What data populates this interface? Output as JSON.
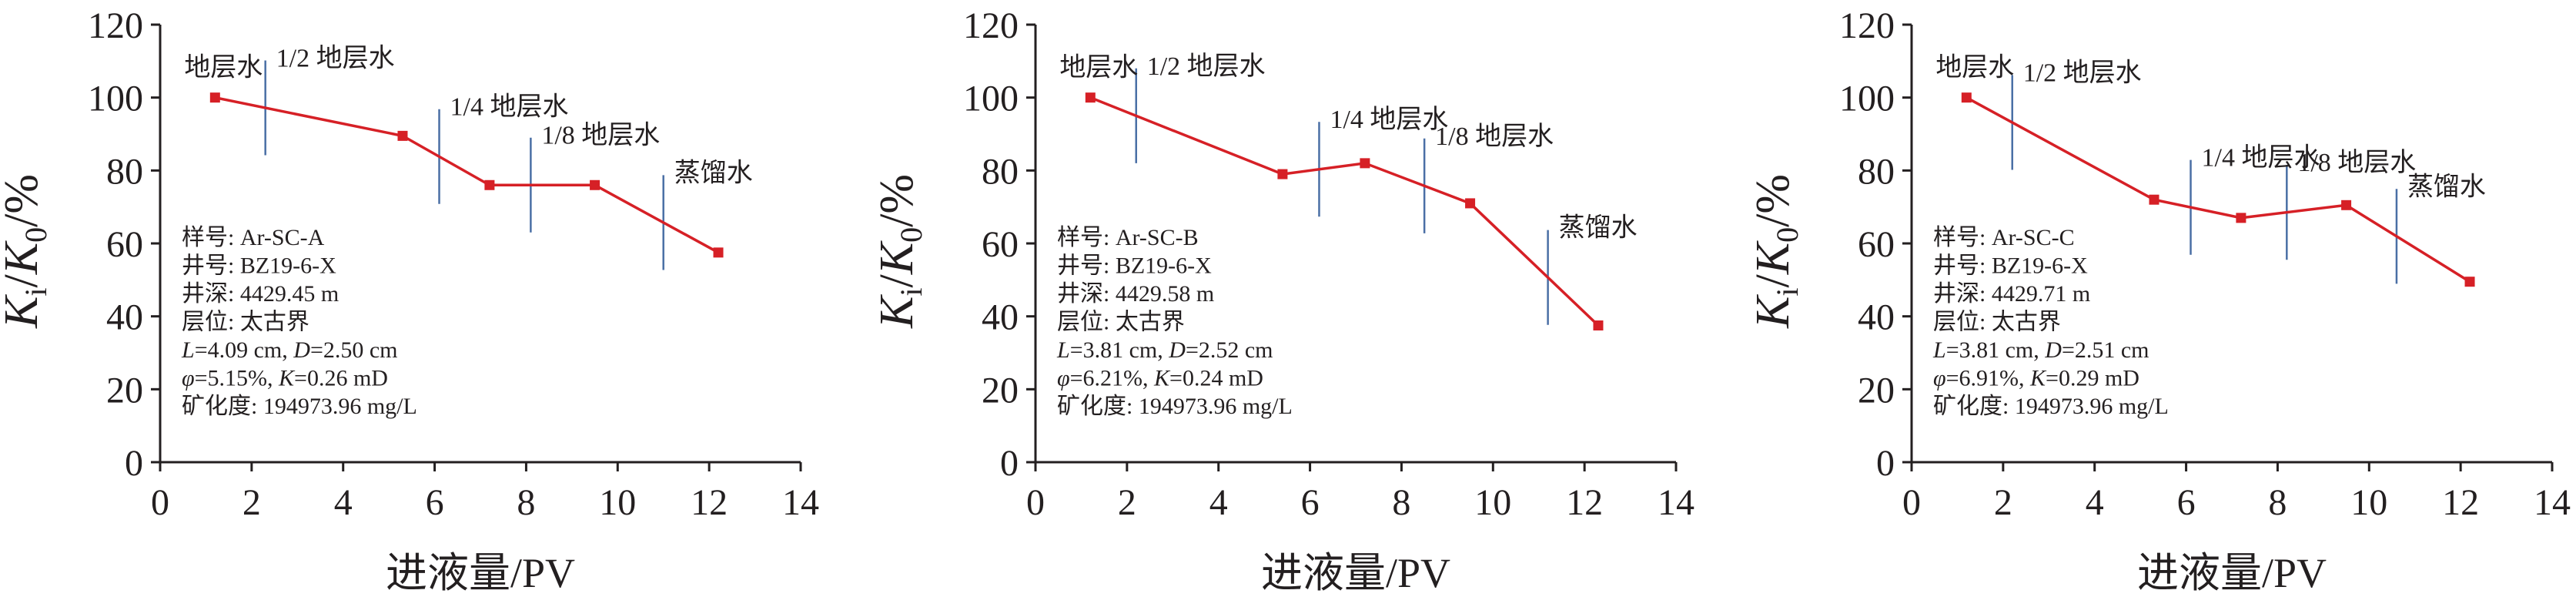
{
  "chart_data": [
    {
      "type": "line",
      "ylabel": {
        "k": "K",
        "i": "i",
        "slash": "/",
        "k0": "K",
        "zero": "0",
        "unit": "/%"
      },
      "xlabel": "进液量/PV",
      "xlim": [
        0,
        14
      ],
      "ylim": [
        0,
        120
      ],
      "xticks": [
        "0",
        "2",
        "4",
        "6",
        "8",
        "10",
        "12",
        "14"
      ],
      "yticks": [
        "0",
        "20",
        "40",
        "60",
        "80",
        "100",
        "120"
      ],
      "series": [
        {
          "x": [
            1.2,
            5.3,
            7.2,
            9.5,
            12.2
          ],
          "y": [
            100,
            89.5,
            76,
            76,
            57.5
          ]
        }
      ],
      "dividers": [
        2.3,
        6.1,
        8.1,
        11.0
      ],
      "stage_labels": [
        "地层水",
        "1/2 地层水",
        "1/4 地层水",
        "1/8 地层水",
        "蒸馏水"
      ],
      "info": {
        "sample": "样号: Ar-SC-A",
        "well": "井号: BZ19-6-X",
        "depth": "井深: 4429.45 m",
        "layer": "层位: 太古界",
        "length_pre": "L",
        "length_mid": "=4.09 cm, ",
        "diam_pre": "D",
        "diam_mid": "=2.50 cm",
        "phi_pre": "φ",
        "phi_mid": "=5.15%, ",
        "perm_pre": "K",
        "perm_mid": "=0.26 mD",
        "salinity": "矿化度: 194973.96 mg/L"
      },
      "colors": {
        "line": "#d62026",
        "divider": "#4a6fa5",
        "axis": "#231f20"
      }
    },
    {
      "type": "line",
      "ylabel": {
        "k": "K",
        "i": "i",
        "slash": "/",
        "k0": "K",
        "zero": "0",
        "unit": "/%"
      },
      "xlabel": "进液量/PV",
      "xlim": [
        0,
        14
      ],
      "ylim": [
        0,
        120
      ],
      "xticks": [
        "0",
        "2",
        "4",
        "6",
        "8",
        "10",
        "12",
        "14"
      ],
      "yticks": [
        "0",
        "20",
        "40",
        "60",
        "80",
        "100",
        "120"
      ],
      "series": [
        {
          "x": [
            1.2,
            5.4,
            7.2,
            9.5,
            12.3
          ],
          "y": [
            100,
            79,
            82,
            71,
            37.5
          ]
        }
      ],
      "dividers": [
        2.2,
        6.2,
        8.5,
        11.2
      ],
      "stage_labels": [
        "地层水",
        "1/2 地层水",
        "1/4 地层水",
        "1/8 地层水",
        "蒸馏水"
      ],
      "info": {
        "sample": "样号: Ar-SC-B",
        "well": "井号: BZ19-6-X",
        "depth": "井深: 4429.58 m",
        "layer": "层位: 太古界",
        "length_pre": "L",
        "length_mid": "=3.81 cm, ",
        "diam_pre": "D",
        "diam_mid": "=2.52 cm",
        "phi_pre": "φ",
        "phi_mid": "=6.21%, ",
        "perm_pre": "K",
        "perm_mid": "=0.24 mD",
        "salinity": "矿化度: 194973.96 mg/L"
      },
      "colors": {
        "line": "#d62026",
        "divider": "#4a6fa5",
        "axis": "#231f20"
      }
    },
    {
      "type": "line",
      "ylabel": {
        "k": "K",
        "i": "i",
        "slash": "/",
        "k0": "K",
        "zero": "0",
        "unit": "/%"
      },
      "xlabel": "进液量/PV",
      "xlim": [
        0,
        14
      ],
      "ylim": [
        0,
        120
      ],
      "xticks": [
        "0",
        "2",
        "4",
        "6",
        "8",
        "10",
        "12",
        "14"
      ],
      "yticks": [
        "0",
        "20",
        "40",
        "60",
        "80",
        "100",
        "120"
      ],
      "series": [
        {
          "x": [
            1.2,
            5.3,
            7.2,
            9.5,
            12.2
          ],
          "y": [
            100,
            72,
            67,
            70.5,
            49.5
          ]
        }
      ],
      "dividers": [
        2.2,
        6.1,
        8.2,
        10.6
      ],
      "stage_labels": [
        "地层水",
        "1/2 地层水",
        "1/4 地层水",
        "1/8 地层水",
        "蒸馏水"
      ],
      "info": {
        "sample": "样号: Ar-SC-C",
        "well": "井号: BZ19-6-X",
        "depth": "井深: 4429.71 m",
        "layer": "层位: 太古界",
        "length_pre": "L",
        "length_mid": "=3.81 cm, ",
        "diam_pre": "D",
        "diam_mid": "=2.51 cm",
        "phi_pre": "φ",
        "phi_mid": "=6.91%, ",
        "perm_pre": "K",
        "perm_mid": "=0.29 mD",
        "salinity": "矿化度: 194973.96 mg/L"
      },
      "colors": {
        "line": "#d62026",
        "divider": "#4a6fa5",
        "axis": "#231f20"
      }
    }
  ]
}
